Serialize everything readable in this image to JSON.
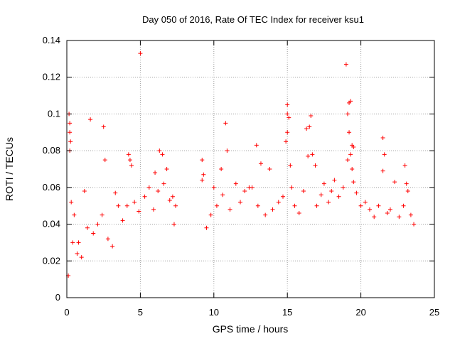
{
  "chart_data": {
    "type": "scatter",
    "title": "Day 050 of 2016, Rate Of TEC Index for receiver ksu1",
    "xlabel": "GPS time / hours",
    "ylabel": "ROTI / TECUs",
    "xlim": [
      0,
      25
    ],
    "ylim": [
      0,
      0.14
    ],
    "x_ticks": [
      0,
      5,
      10,
      15,
      20,
      25
    ],
    "y_ticks": [
      0,
      0.02,
      0.04,
      0.06,
      0.08,
      0.1,
      0.12,
      0.14
    ],
    "x_tick_labels": [
      "0",
      "5",
      "10",
      "15",
      "20",
      "25"
    ],
    "y_tick_labels": [
      "0",
      "0.02",
      "0.04",
      "0.06",
      "0.08",
      "0.1",
      "0.12",
      "0.14"
    ],
    "grid": true,
    "marker": "+",
    "marker_color": "#ff0000",
    "data_gap_hours": [
      7.6,
      8.9
    ],
    "series": [
      {
        "name": "ksu1",
        "points": [
          [
            0.1,
            0.012
          ],
          [
            0.15,
            0.1
          ],
          [
            0.2,
            0.095
          ],
          [
            0.2,
            0.09
          ],
          [
            0.25,
            0.085
          ],
          [
            0.2,
            0.08
          ],
          [
            0.3,
            0.052
          ],
          [
            0.5,
            0.045
          ],
          [
            0.8,
            0.03
          ],
          [
            1.2,
            0.058
          ],
          [
            1.6,
            0.097
          ],
          [
            2.5,
            0.093
          ],
          [
            2.6,
            0.075
          ],
          [
            3.3,
            0.057
          ],
          [
            4.2,
            0.078
          ],
          [
            4.3,
            0.075
          ],
          [
            4.4,
            0.072
          ],
          [
            5.0,
            0.133
          ],
          [
            6.0,
            0.068
          ],
          [
            6.3,
            0.08
          ],
          [
            6.5,
            0.078
          ],
          [
            6.8,
            0.07
          ],
          [
            7.2,
            0.055
          ],
          [
            7.4,
            0.05
          ],
          [
            9.2,
            0.075
          ],
          [
            9.3,
            0.067
          ],
          [
            9.2,
            0.064
          ],
          [
            10.0,
            0.06
          ],
          [
            10.5,
            0.07
          ],
          [
            10.8,
            0.095
          ],
          [
            10.9,
            0.08
          ],
          [
            11.5,
            0.062
          ],
          [
            12.4,
            0.06
          ],
          [
            12.9,
            0.083
          ],
          [
            13.2,
            0.073
          ],
          [
            13.8,
            0.07
          ],
          [
            15.0,
            0.105
          ],
          [
            15.0,
            0.1
          ],
          [
            15.1,
            0.098
          ],
          [
            15.0,
            0.09
          ],
          [
            14.9,
            0.085
          ],
          [
            15.2,
            0.072
          ],
          [
            15.3,
            0.06
          ],
          [
            16.3,
            0.092
          ],
          [
            16.5,
            0.093
          ],
          [
            16.6,
            0.099
          ],
          [
            16.4,
            0.077
          ],
          [
            16.7,
            0.078
          ],
          [
            16.9,
            0.072
          ],
          [
            17.5,
            0.062
          ],
          [
            18.2,
            0.064
          ],
          [
            19.0,
            0.127
          ],
          [
            19.2,
            0.106
          ],
          [
            19.3,
            0.107
          ],
          [
            19.1,
            0.1
          ],
          [
            19.2,
            0.09
          ],
          [
            19.4,
            0.083
          ],
          [
            19.5,
            0.082
          ],
          [
            19.3,
            0.078
          ],
          [
            19.1,
            0.075
          ],
          [
            19.4,
            0.07
          ],
          [
            19.5,
            0.063
          ],
          [
            21.5,
            0.087
          ],
          [
            21.6,
            0.078
          ],
          [
            21.5,
            0.069
          ],
          [
            22.3,
            0.063
          ],
          [
            23.0,
            0.072
          ],
          [
            23.1,
            0.062
          ],
          [
            23.4,
            0.045
          ],
          [
            0.4,
            0.03
          ],
          [
            0.7,
            0.024
          ],
          [
            1.0,
            0.022
          ],
          [
            1.4,
            0.038
          ],
          [
            1.8,
            0.035
          ],
          [
            2.1,
            0.04
          ],
          [
            2.4,
            0.045
          ],
          [
            2.8,
            0.032
          ],
          [
            3.1,
            0.028
          ],
          [
            3.5,
            0.05
          ],
          [
            3.8,
            0.042
          ],
          [
            4.1,
            0.05
          ],
          [
            4.6,
            0.052
          ],
          [
            4.9,
            0.047
          ],
          [
            5.3,
            0.055
          ],
          [
            5.6,
            0.06
          ],
          [
            5.9,
            0.048
          ],
          [
            6.2,
            0.058
          ],
          [
            6.6,
            0.062
          ],
          [
            7.0,
            0.053
          ],
          [
            7.3,
            0.04
          ],
          [
            9.5,
            0.038
          ],
          [
            9.8,
            0.045
          ],
          [
            10.2,
            0.05
          ],
          [
            10.6,
            0.056
          ],
          [
            11.1,
            0.048
          ],
          [
            11.8,
            0.052
          ],
          [
            12.1,
            0.058
          ],
          [
            12.6,
            0.06
          ],
          [
            13.0,
            0.05
          ],
          [
            13.5,
            0.045
          ],
          [
            14.0,
            0.048
          ],
          [
            14.4,
            0.052
          ],
          [
            14.7,
            0.055
          ],
          [
            15.5,
            0.05
          ],
          [
            15.8,
            0.046
          ],
          [
            16.1,
            0.058
          ],
          [
            17.0,
            0.05
          ],
          [
            17.3,
            0.056
          ],
          [
            17.8,
            0.052
          ],
          [
            18.0,
            0.058
          ],
          [
            18.5,
            0.055
          ],
          [
            18.8,
            0.06
          ],
          [
            19.7,
            0.057
          ],
          [
            20.0,
            0.05
          ],
          [
            20.3,
            0.052
          ],
          [
            20.6,
            0.048
          ],
          [
            20.9,
            0.044
          ],
          [
            21.2,
            0.05
          ],
          [
            21.8,
            0.046
          ],
          [
            22.0,
            0.048
          ],
          [
            22.6,
            0.044
          ],
          [
            22.9,
            0.05
          ],
          [
            23.2,
            0.058
          ],
          [
            23.6,
            0.04
          ]
        ]
      }
    ]
  }
}
